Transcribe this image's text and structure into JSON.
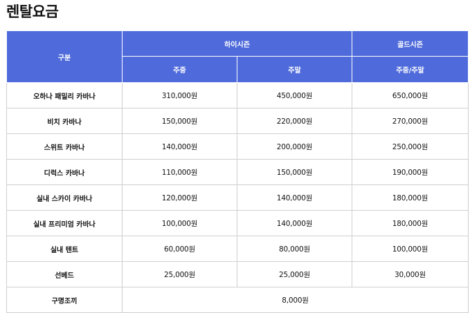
{
  "title": "렌탈요금",
  "table": {
    "header": {
      "category": "구분",
      "high_season": "하이시즌",
      "gold_season": "골드시즌",
      "weekday": "주중",
      "weekend": "주말",
      "weekday_weekend": "주중/주말"
    },
    "rows": [
      {
        "name": "오하나 패밀리 카바나",
        "weekday": "310,000원",
        "weekend": "450,000원",
        "gold": "650,000원"
      },
      {
        "name": "비치 카바나",
        "weekday": "150,000원",
        "weekend": "220,000원",
        "gold": "270,000원"
      },
      {
        "name": "스위트 카바나",
        "weekday": "140,000원",
        "weekend": "200,000원",
        "gold": "250,000원"
      },
      {
        "name": "디럭스 카바나",
        "weekday": "110,000원",
        "weekend": "150,000원",
        "gold": "190,000원"
      },
      {
        "name": "실내 스카이 카바나",
        "weekday": "120,000원",
        "weekend": "140,000원",
        "gold": "180,000원"
      },
      {
        "name": "실내 프리미엄 카바나",
        "weekday": "100,000원",
        "weekend": "140,000원",
        "gold": "180,000원"
      },
      {
        "name": "실내 텐트",
        "weekday": "60,000원",
        "weekend": "80,000원",
        "gold": "100,000원"
      },
      {
        "name": "선베드",
        "weekday": "25,000원",
        "weekend": "25,000원",
        "gold": "30,000원"
      }
    ],
    "life_jacket": {
      "name": "구명조끼",
      "price": "8,000원"
    }
  },
  "colors": {
    "header_bg": "#4f6bdb",
    "header_text": "#ffffff",
    "border": "#cfcfcf"
  }
}
